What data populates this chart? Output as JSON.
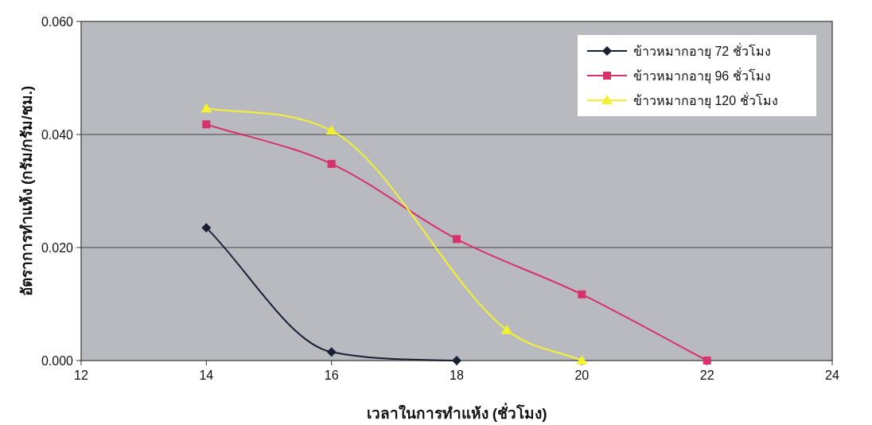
{
  "chart_data": {
    "type": "line",
    "xlabel": "เวลาในการทำแห้ง (ชั่วโมง)",
    "ylabel": "อัตราการทำแห้ง (กรัม/กรัม/ชม.)",
    "xlim": [
      12,
      24
    ],
    "xticks": [
      12,
      14,
      16,
      18,
      20,
      22,
      24
    ],
    "ylim": [
      0,
      0.06
    ],
    "yticks": [
      {
        "value": 0,
        "label": "0.000"
      },
      {
        "value": 0.02,
        "label": "0.020"
      },
      {
        "value": 0.04,
        "label": "0.040"
      },
      {
        "value": 0.06,
        "label": "0.060"
      }
    ],
    "grid": "y",
    "legend": "top right",
    "series": [
      {
        "name": "ข้าวหมากอายุ 72 ชั่วโมง",
        "color": "#1a1f33",
        "marker": "diamond",
        "x": [
          14,
          16,
          18
        ],
        "values": [
          0.0235,
          0.0015,
          0.0
        ]
      },
      {
        "name": "ข้าวหมากอายุ 96 ชั่วโมง",
        "color": "#d6336b",
        "marker": "square",
        "x": [
          14,
          16,
          18,
          20,
          22
        ],
        "values": [
          0.0418,
          0.0348,
          0.0215,
          0.0117,
          0.0
        ]
      },
      {
        "name": "ข้าวหมากอายุ 120 ชั่วโมง",
        "color": "#f2f230",
        "marker": "triangle",
        "x": [
          14,
          16,
          18.8,
          20
        ],
        "values": [
          0.0446,
          0.0407,
          0.0054,
          0.0
        ]
      }
    ]
  }
}
